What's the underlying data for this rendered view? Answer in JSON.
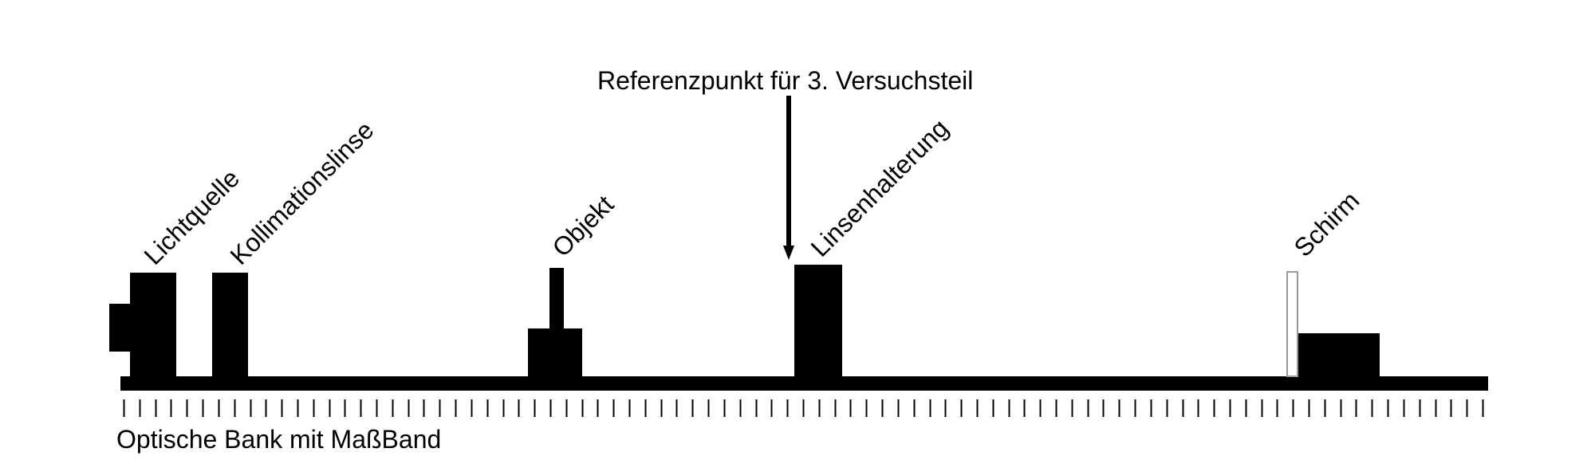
{
  "labels": {
    "reference": "Referenzpunkt für 3. Versuchsteil",
    "light_source": "Lichtquelle",
    "collimation_lens": "Kollimationslinse",
    "object": "Objekt",
    "lens_holder": "Linsenhalterung",
    "screen": "Schirm",
    "bench": "Optische Bank mit MaßBand"
  },
  "scale": {
    "tick_count": 87
  },
  "colors": {
    "ink": "#000000",
    "screen_outline": "#999999",
    "background": "#ffffff"
  }
}
